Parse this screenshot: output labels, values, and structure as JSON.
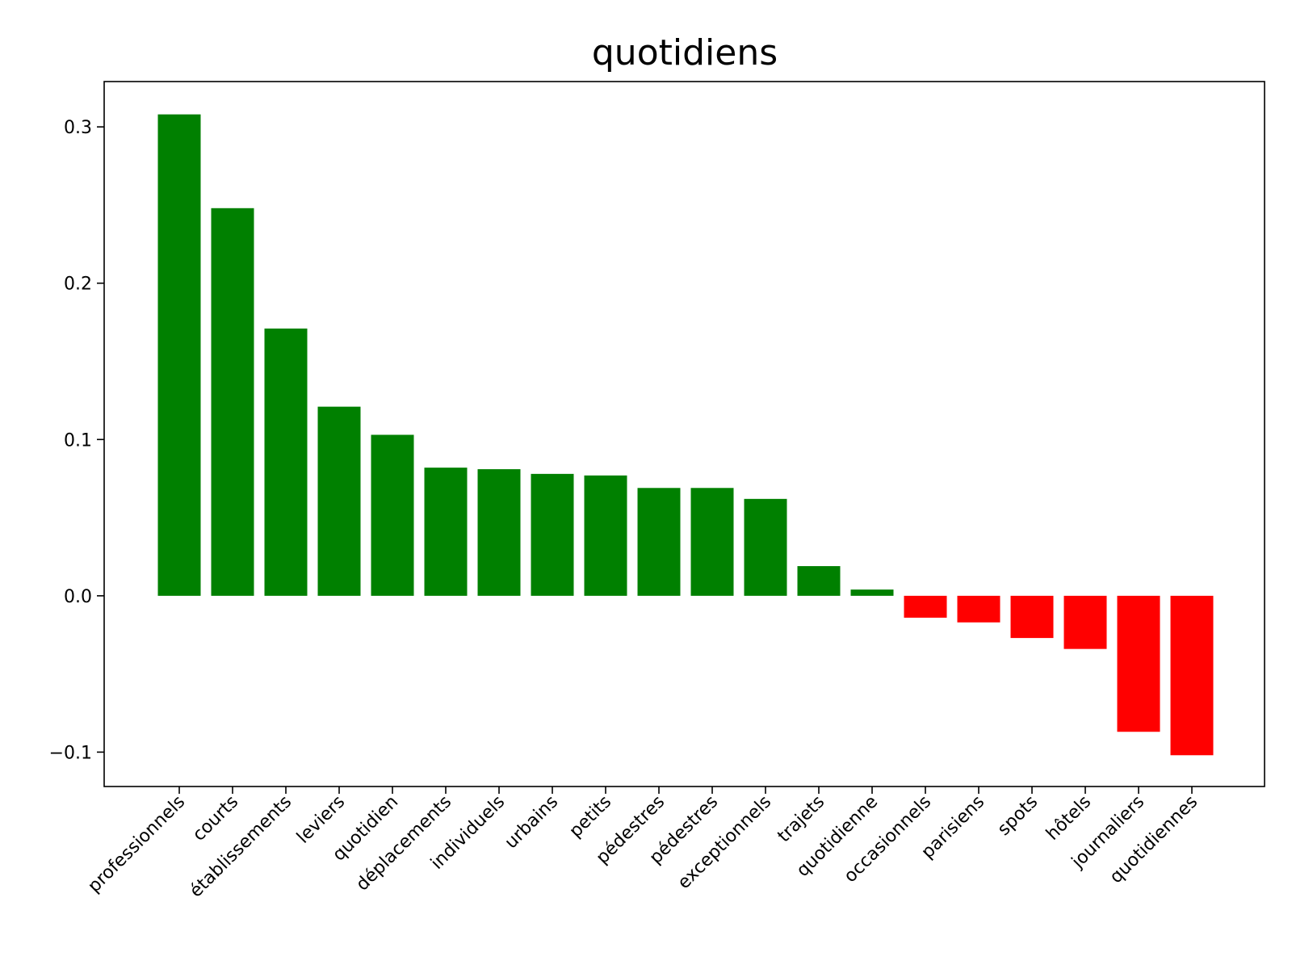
{
  "chart_data": {
    "type": "bar",
    "title": "quotidiens",
    "xlabel": "",
    "ylabel": "",
    "categories": [
      "professionnels",
      "courts",
      "établissements",
      "leviers",
      "quotidien",
      "déplacements",
      "individuels",
      "urbains",
      "petits",
      "pédestres",
      "pédestres",
      "exceptionnels",
      "trajets",
      "quotidienne",
      "occasionnels",
      "parisiens",
      "spots",
      "hôtels",
      "journaliers",
      "quotidiennes"
    ],
    "values": [
      0.308,
      0.248,
      0.171,
      0.121,
      0.103,
      0.082,
      0.081,
      0.078,
      0.077,
      0.069,
      0.069,
      0.062,
      0.019,
      0.004,
      -0.014,
      -0.017,
      -0.027,
      -0.034,
      -0.087,
      -0.102
    ],
    "ylim": [
      -0.122,
      0.329
    ],
    "yticks": [
      -0.1,
      0.0,
      0.1,
      0.2,
      0.3
    ],
    "ytick_labels": [
      "−0.1",
      "0.0",
      "0.1",
      "0.2",
      "0.3"
    ],
    "colors": {
      "positive": "#008000",
      "negative": "#ff0000"
    },
    "grid": false,
    "legend": "none"
  }
}
